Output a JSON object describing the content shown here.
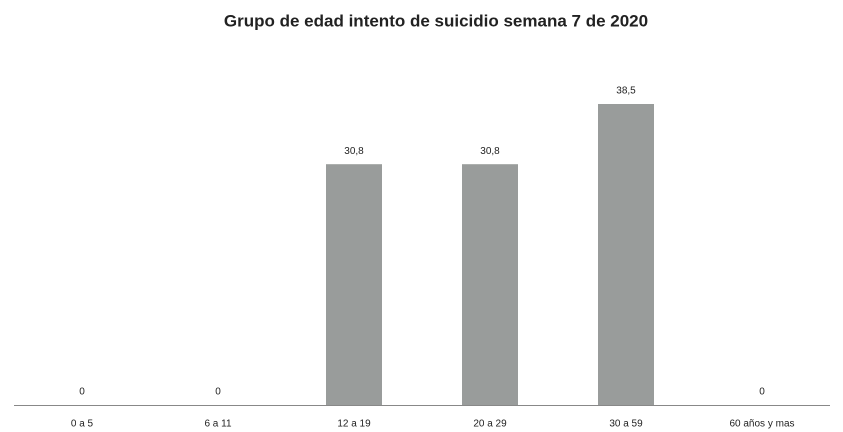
{
  "chart_data": {
    "type": "bar",
    "title": "Grupo de edad intento de suicidio semana 7 de 2020",
    "categories": [
      "0 a 5",
      "6 a 11",
      "12 a 19",
      "20 a 29",
      "30 a 59",
      "60 años y mas"
    ],
    "values": [
      0,
      0,
      30.8,
      30.8,
      38.5,
      0
    ],
    "value_labels": [
      "0",
      "0",
      "30,8",
      "30,8",
      "38,5",
      "0"
    ],
    "color": "#999c9b"
  }
}
